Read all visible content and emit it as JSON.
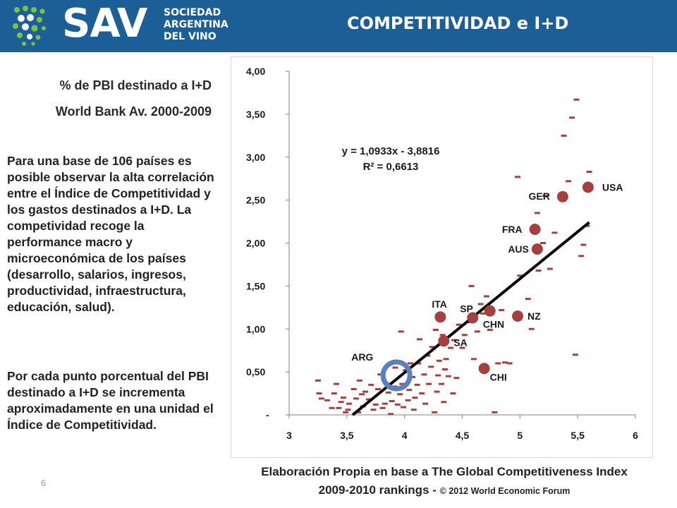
{
  "header": {
    "logo_text": "SAV",
    "logo_org_lines": [
      "SOCIEDAD",
      "ARGENTINA",
      "DEL VINO"
    ],
    "title": "COMPETITIVIDAD e I+D",
    "background": "#1c5f97"
  },
  "left": {
    "subtitle_1": "% de PBI destinado a I+D",
    "subtitle_2": "World Bank Av. 2000-2009",
    "paragraph_1": "Para una base de 106 países es posible observar la alta correlación entre el Índice de Competitividad y los gastos destinados a I+D. La competividad recoge la performance macro y microeconómica de los países (desarrollo, salarios, ingresos, productividad, infraestructura, educación, salud).",
    "paragraph_2": "Por cada punto porcentual del PBI destinado a I+D se incrementa aproximadamente en una unidad el Índice de Competitividad.",
    "page_number": "6"
  },
  "caption": {
    "line_1": "Elaboración Propia en base a The Global Competitiveness Index",
    "line_2": "2009-2010 rankings -",
    "copyright": "© 2012 World Economic Forum"
  },
  "chart_data": {
    "type": "scatter",
    "xlim": [
      3,
      6
    ],
    "ylim": [
      0,
      4
    ],
    "x_ticks": [
      3,
      3.5,
      4,
      4.5,
      5,
      5.5,
      6
    ],
    "x_tick_labels": [
      "3",
      "3,5",
      "4",
      "4,5",
      "5",
      "5,5",
      "6"
    ],
    "y_ticks": [
      0,
      0.5,
      1,
      1.5,
      2,
      2.5,
      3,
      3.5,
      4
    ],
    "y_tick_labels": [
      "-",
      "0,50",
      "1,00",
      "1,50",
      "2,00",
      "2,50",
      "3,00",
      "3,50",
      "4,00"
    ],
    "grid": false,
    "colors": {
      "marker": "#a5403e",
      "trend": "#000000",
      "highlight": "#5b7fc1",
      "axis": "#808080"
    },
    "trendline": {
      "slope": 1.0933,
      "intercept": -3.8816,
      "x_range": [
        3.55,
        5.6
      ],
      "equation_label": "y = 1,0933x - 3,8816",
      "r2_label": "R² = 0,6613"
    },
    "labeled_points": [
      {
        "label": "USA",
        "x": 5.59,
        "y": 2.65
      },
      {
        "label": "GER",
        "x": 5.37,
        "y": 2.54
      },
      {
        "label": "FRA",
        "x": 5.13,
        "y": 2.16
      },
      {
        "label": "AUS",
        "x": 5.15,
        "y": 1.93
      },
      {
        "label": "NZ",
        "x": 4.98,
        "y": 1.15
      },
      {
        "label": "SP",
        "x": 4.59,
        "y": 1.13
      },
      {
        "label": "CHN",
        "x": 4.74,
        "y": 1.21
      },
      {
        "label": "ITA",
        "x": 4.31,
        "y": 1.14
      },
      {
        "label": "SA",
        "x": 4.34,
        "y": 0.86
      },
      {
        "label": "CHI",
        "x": 4.69,
        "y": 0.54
      },
      {
        "label": "ARG",
        "x": 3.93,
        "y": 0.46
      }
    ],
    "highlight_point": {
      "label": "ARG",
      "x": 3.93,
      "y": 0.46
    },
    "other_points": [
      [
        3.25,
        0.4
      ],
      [
        3.26,
        0.25
      ],
      [
        3.28,
        0.19
      ],
      [
        3.33,
        0.17
      ],
      [
        3.37,
        0.08
      ],
      [
        3.39,
        0.25
      ],
      [
        3.41,
        0.36
      ],
      [
        3.43,
        0.08
      ],
      [
        3.45,
        0.15
      ],
      [
        3.47,
        0.2
      ],
      [
        3.49,
        0.03
      ],
      [
        3.51,
        0.06
      ],
      [
        3.52,
        0.13
      ],
      [
        3.56,
        0.3
      ],
      [
        3.58,
        0.19
      ],
      [
        3.6,
        0.03
      ],
      [
        3.61,
        0.4
      ],
      [
        3.63,
        0.24
      ],
      [
        3.64,
        0.1
      ],
      [
        3.66,
        0.27
      ],
      [
        3.69,
        0.18
      ],
      [
        3.71,
        0.35
      ],
      [
        3.73,
        0.06
      ],
      [
        3.75,
        0.12
      ],
      [
        3.77,
        0.3
      ],
      [
        3.79,
        0.47
      ],
      [
        3.81,
        0.08
      ],
      [
        3.83,
        0.13
      ],
      [
        3.84,
        0.37
      ],
      [
        3.86,
        0.26
      ],
      [
        3.88,
        0.01
      ],
      [
        3.89,
        0.16
      ],
      [
        3.91,
        0.33
      ],
      [
        3.92,
        0.55
      ],
      [
        3.94,
        0.12
      ],
      [
        3.96,
        0.24
      ],
      [
        3.97,
        0.97
      ],
      [
        3.98,
        0.36
      ],
      [
        3.99,
        0.09
      ],
      [
        4.01,
        0.52
      ],
      [
        4.03,
        0.17
      ],
      [
        4.04,
        0.29
      ],
      [
        4.05,
        0.6
      ],
      [
        4.07,
        0.44
      ],
      [
        4.08,
        0.06
      ],
      [
        4.09,
        0.2
      ],
      [
        4.11,
        0.35
      ],
      [
        4.12,
        0.6
      ],
      [
        4.13,
        0.88
      ],
      [
        4.15,
        0.25
      ],
      [
        4.17,
        0.47
      ],
      [
        4.18,
        0.13
      ],
      [
        4.2,
        0.69
      ],
      [
        4.21,
        0.36
      ],
      [
        4.23,
        0.56
      ],
      [
        4.24,
        0.79
      ],
      [
        4.26,
        0.03
      ],
      [
        4.27,
        0.99
      ],
      [
        4.28,
        0.27
      ],
      [
        4.29,
        0.46
      ],
      [
        4.3,
        0.63
      ],
      [
        4.31,
        0.82
      ],
      [
        4.32,
        0.36
      ],
      [
        4.33,
        0.93
      ],
      [
        4.34,
        0.15
      ],
      [
        4.35,
        0.53
      ],
      [
        4.36,
        0.65
      ],
      [
        4.38,
        0.45
      ],
      [
        4.4,
        0.78
      ],
      [
        4.42,
        0.25
      ],
      [
        4.43,
        0.87
      ],
      [
        4.45,
        0.43
      ],
      [
        4.47,
        1.05
      ],
      [
        4.5,
        0.78
      ],
      [
        4.52,
        0.93
      ],
      [
        4.55,
        1.08
      ],
      [
        4.58,
        1.5
      ],
      [
        4.6,
        0.65
      ],
      [
        4.63,
        0.97
      ],
      [
        4.66,
        1.29
      ],
      [
        4.68,
        1.18
      ],
      [
        4.71,
        1.38
      ],
      [
        4.74,
        0.99
      ],
      [
        4.78,
        0.03
      ],
      [
        4.81,
        0.6
      ],
      [
        4.84,
        1.22
      ],
      [
        4.87,
        0.61
      ],
      [
        4.91,
        0.6
      ],
      [
        5.0,
        1.62
      ],
      [
        5.07,
        1.35
      ],
      [
        5.1,
        1.0
      ],
      [
        5.16,
        1.68
      ],
      [
        5.2,
        2.0
      ],
      [
        5.26,
        1.7
      ],
      [
        5.3,
        2.12
      ],
      [
        5.15,
        2.35
      ],
      [
        5.22,
        2.55
      ],
      [
        5.42,
        2.72
      ],
      [
        5.48,
        0.7
      ],
      [
        5.53,
        1.85
      ],
      [
        5.58,
        2.2
      ],
      [
        5.6,
        2.83
      ],
      [
        5.38,
        3.25
      ],
      [
        5.45,
        3.46
      ],
      [
        5.49,
        3.67
      ],
      [
        4.98,
        2.77
      ],
      [
        5.55,
        1.98
      ]
    ]
  }
}
